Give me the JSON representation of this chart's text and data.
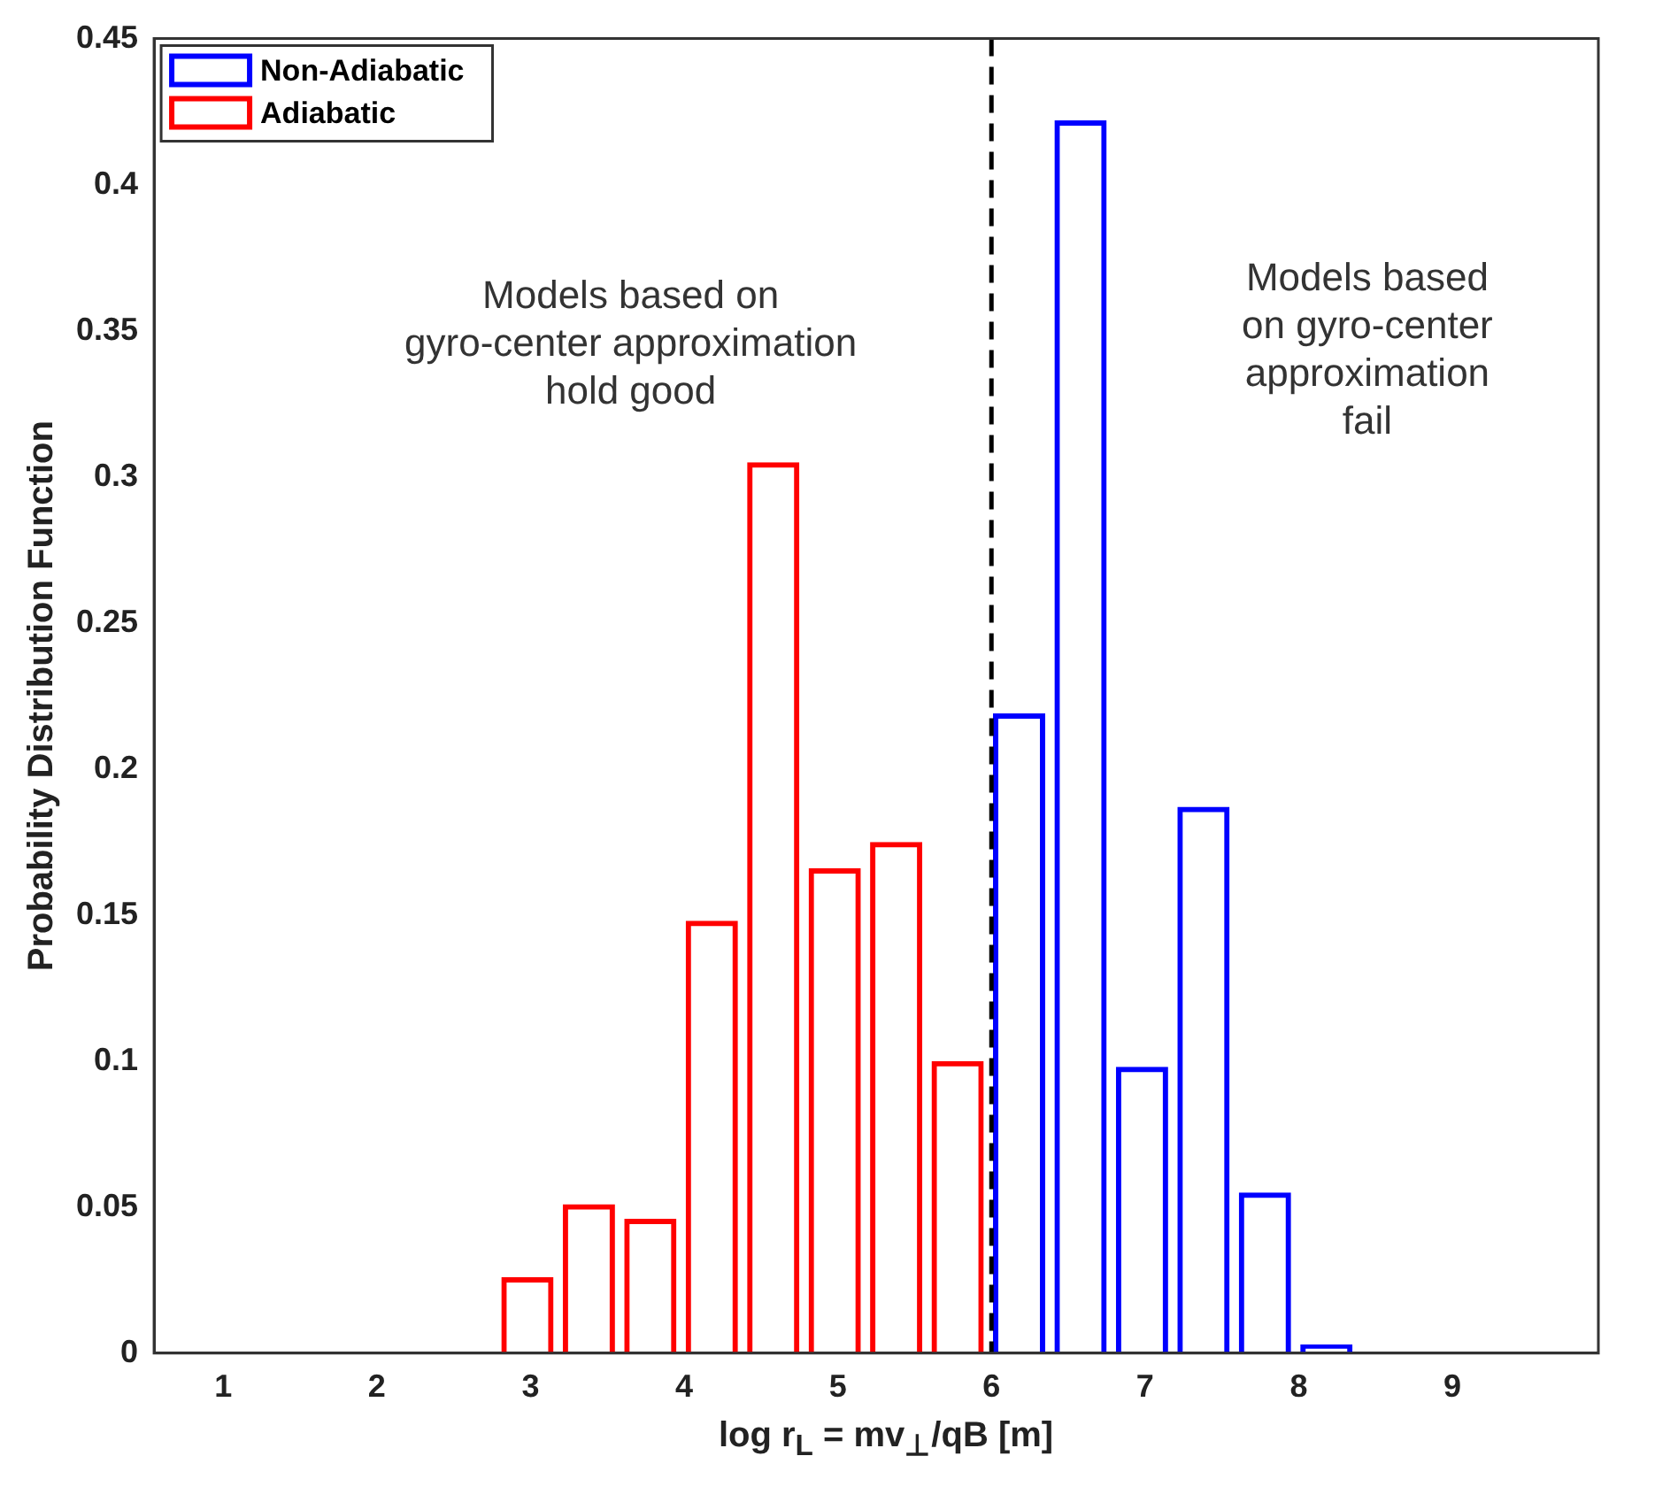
{
  "chart_data": {
    "type": "bar",
    "xlabel": "log r$_{L}$ = mv$_{⊥}$/qB [m]",
    "ylabel": "Probability Distribution Function",
    "series": [
      {
        "name": "Non-Adiabatic",
        "color": "#0000ff",
        "x": [
          6.18,
          6.58,
          6.98,
          7.38,
          7.78,
          8.18
        ],
        "values": [
          0.219,
          0.422,
          0.098,
          0.187,
          0.055,
          0.003
        ]
      },
      {
        "name": "Adiabatic",
        "color": "#ff0000",
        "x": [
          2.98,
          3.38,
          3.78,
          4.18,
          4.58,
          4.98,
          5.38,
          5.78
        ],
        "values": [
          0.026,
          0.051,
          0.046,
          0.148,
          0.305,
          0.166,
          0.175,
          0.1
        ]
      }
    ],
    "xlim": [
      0.55,
      9.95
    ],
    "xticks": [
      1,
      2,
      3,
      4,
      5,
      6,
      7,
      8,
      9
    ],
    "ylim": [
      0,
      0.45
    ],
    "yticks": [
      0,
      0.05,
      0.1,
      0.15,
      0.2,
      0.25,
      0.3,
      0.35,
      0.4,
      0.45
    ],
    "ref_lines": [
      {
        "axis": "x",
        "value": 6,
        "color": "#000000",
        "line_style": "dashed"
      }
    ],
    "annotations": [
      "Models based on\ngyro-center approximation\nhold good",
      "Models based\non gyro-center\napproximation\nfail"
    ],
    "legend": "top left",
    "grid": false
  }
}
